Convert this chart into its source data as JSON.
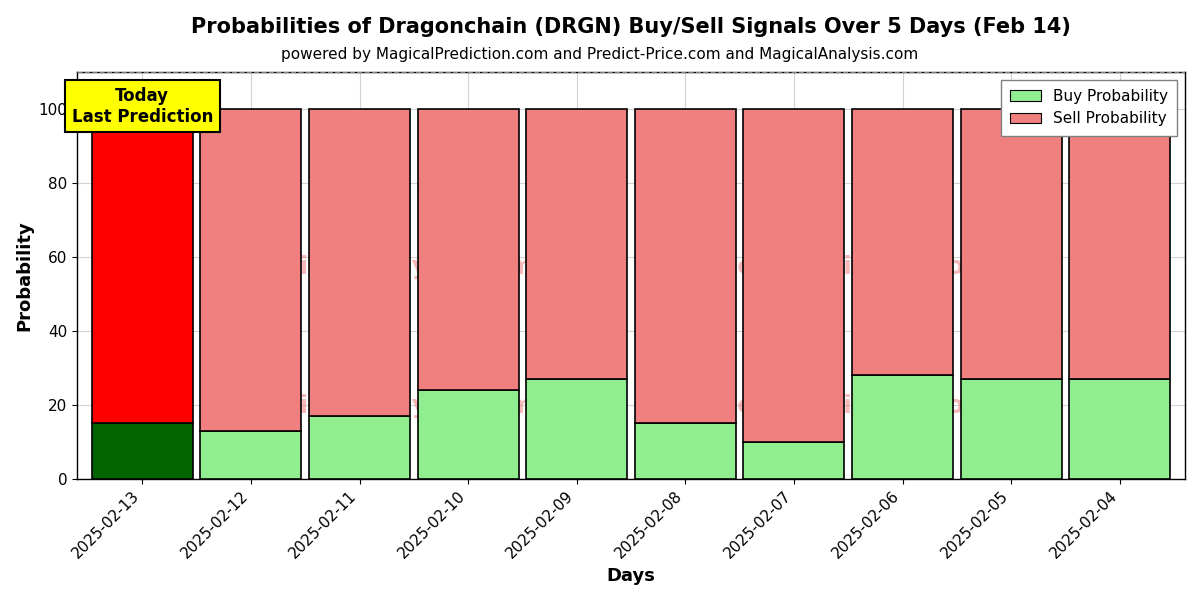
{
  "title": "Probabilities of Dragonchain (DRGN) Buy/Sell Signals Over 5 Days (Feb 14)",
  "subtitle": "powered by MagicalPrediction.com and Predict-Price.com and MagicalAnalysis.com",
  "xlabel": "Days",
  "ylabel": "Probability",
  "categories": [
    "2025-02-13",
    "2025-02-12",
    "2025-02-11",
    "2025-02-10",
    "2025-02-09",
    "2025-02-08",
    "2025-02-07",
    "2025-02-06",
    "2025-02-05",
    "2025-02-04"
  ],
  "buy_values": [
    15,
    13,
    17,
    24,
    27,
    15,
    10,
    28,
    27,
    27
  ],
  "sell_values": [
    85,
    87,
    83,
    76,
    73,
    85,
    90,
    72,
    73,
    73
  ],
  "today_buy_color": "#006400",
  "today_sell_color": "#FF0000",
  "other_buy_color": "#90EE90",
  "other_sell_color": "#F08080",
  "today_label_bg": "#FFFF00",
  "today_label_text": "Today\nLast Prediction",
  "legend_buy_label": "Buy Probability",
  "legend_sell_label": "Sell Probability",
  "ylim": [
    0,
    110
  ],
  "yticks": [
    0,
    20,
    40,
    60,
    80,
    100
  ],
  "dashed_line_y": 110,
  "bar_edge_color": "#000000",
  "bar_linewidth": 1.2,
  "bar_width": 0.93
}
